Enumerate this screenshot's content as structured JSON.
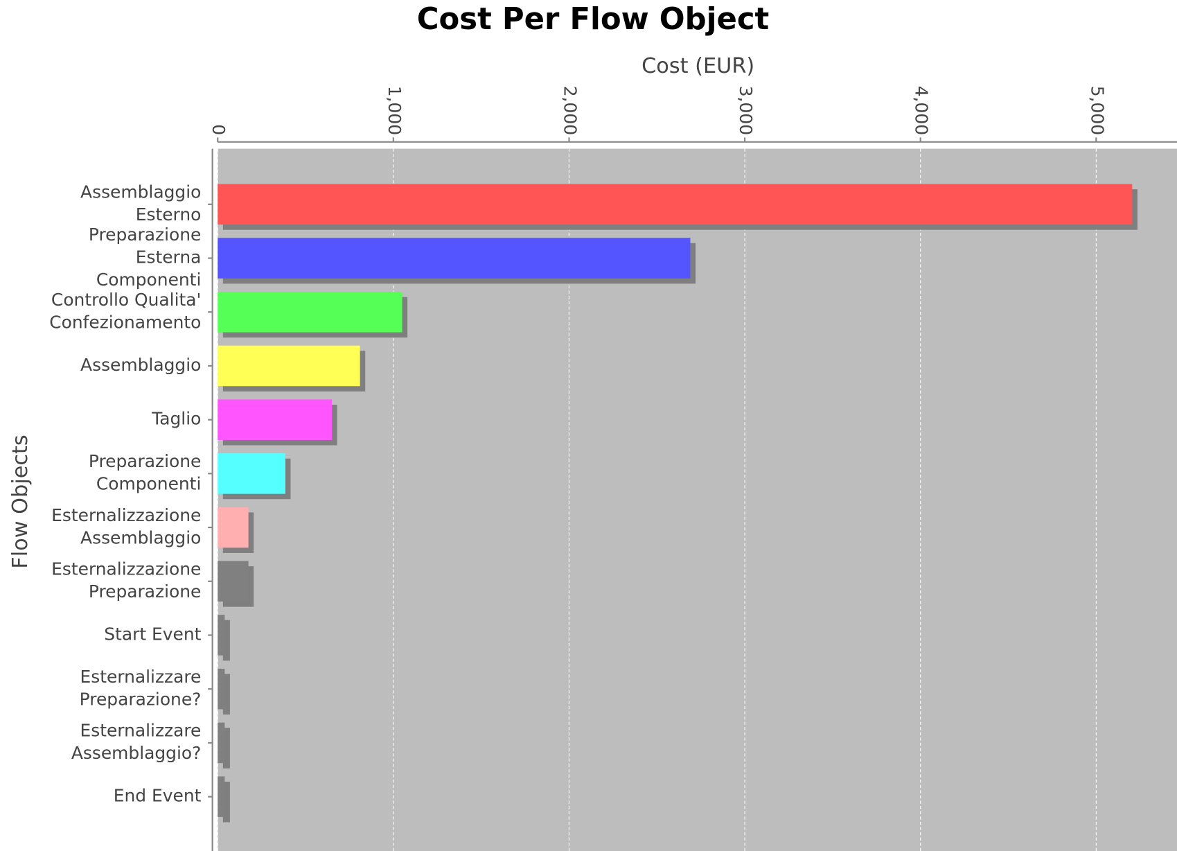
{
  "chart_data": {
    "type": "bar",
    "orientation": "horizontal",
    "title": "Cost Per Flow Object",
    "x_label": "Cost (EUR)",
    "y_label": "Flow Objects",
    "categories": [
      [
        "Assemblaggio",
        "Esterno"
      ],
      [
        "Preparazione",
        "Esterna",
        "Componenti"
      ],
      [
        "Controllo Qualita'",
        "Confezionamento"
      ],
      [
        "Assemblaggio"
      ],
      [
        "Taglio"
      ],
      [
        "Preparazione",
        "Componenti"
      ],
      [
        "Esternalizzazione",
        "Assemblaggio"
      ],
      [
        "Esternalizzazione",
        "Preparazione"
      ],
      [
        "Start Event"
      ],
      [
        "Esternalizzare",
        "Preparazione?"
      ],
      [
        "Esternalizzare",
        "Assemblaggio?"
      ],
      [
        "End Event"
      ]
    ],
    "values": [
      5205,
      2690,
      1050,
      810,
      650,
      385,
      175,
      175,
      40,
      40,
      40,
      40
    ],
    "colors": [
      "#ff5555",
      "#5555ff",
      "#55ff55",
      "#ffff55",
      "#ff55ff",
      "#55ffff",
      "#ffafaf",
      "#808080",
      "#808080",
      "#808080",
      "#808080",
      "#808080"
    ],
    "xlim": [
      0,
      5460
    ],
    "xticks": [
      0,
      {
        "value": 1000,
        "label": "1,000"
      },
      {
        "value": 2000,
        "label": "2,000"
      },
      {
        "value": 3000,
        "label": "3,000"
      },
      {
        "value": 4000,
        "label": "4,000"
      },
      {
        "value": 5000,
        "label": "5,000"
      }
    ],
    "grid": true
  }
}
